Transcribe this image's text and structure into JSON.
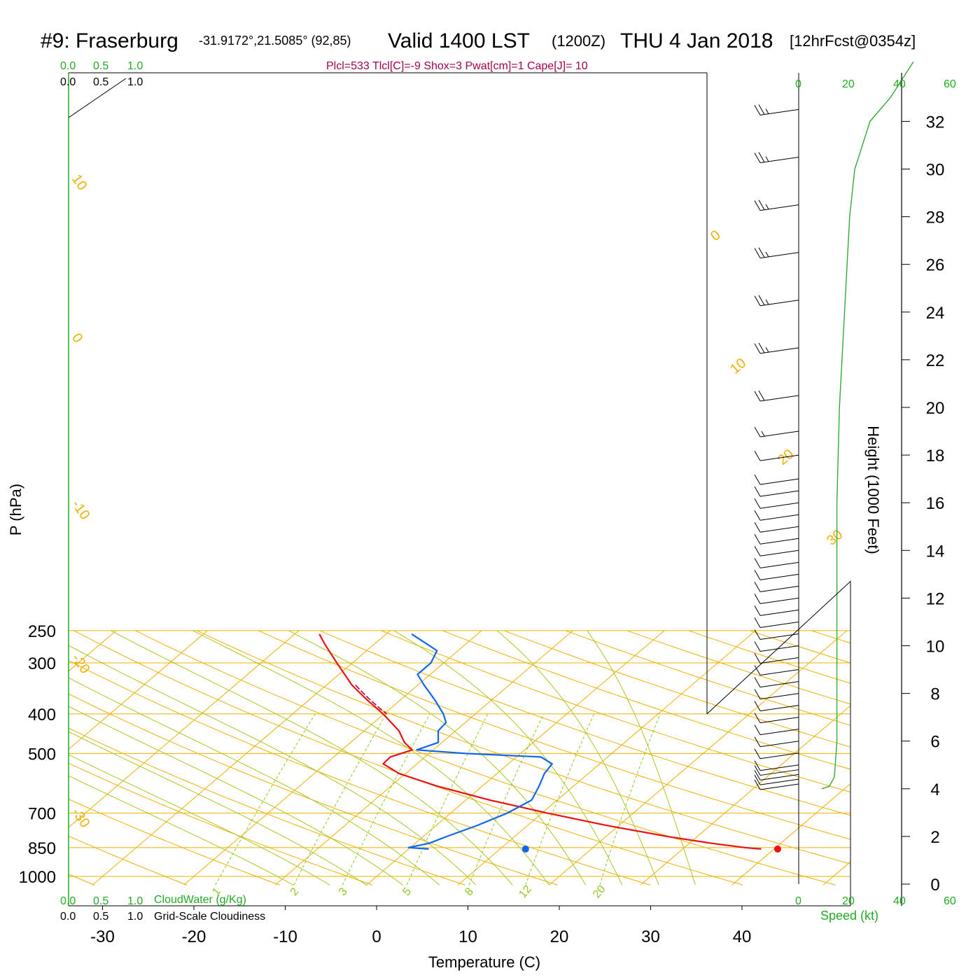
{
  "header": {
    "station": "#9: Fraserburg",
    "coords": "-31.9172°,21.5085° (92,85)",
    "valid": "Valid 1400 LST",
    "utc": "(1200Z)",
    "date": "THU 4 Jan 2018",
    "forecast": "[12hrFcst@0354z]",
    "indices": "Plcl=533 Tlcl[C]=-9 Shox=3 Pwat[cm]=1 Cape[J]= 10"
  },
  "colors": {
    "temperature": "#ee1111",
    "dewpoint": "#1166ee",
    "isotherm": "#f0b000",
    "dry_adiabat": "#f0b000",
    "moist_adiabat": "#a8c820",
    "mixing_ratio": "#90c820",
    "cloud_water": "#22aa22",
    "speed_profile": "#33aa33",
    "parcel": "#a3004f"
  },
  "cloud_scale": {
    "green_labels": [
      "0.0",
      "0.5",
      "1.0"
    ],
    "black_labels": [
      "0.0",
      "0.5",
      "1.0"
    ],
    "cloud_water_label": "CloudWater (g/Kg)",
    "cloudiness_label": "Grid-Scale Cloudiness"
  },
  "speed_scale": {
    "labels": [
      "0",
      "20",
      "40",
      "60"
    ],
    "axis_label": "Speed (kt)"
  },
  "chart_data": {
    "type": "line",
    "title": "#9: Fraserburg",
    "xlabel": "Temperature (C)",
    "ylabel": "P (hPa)",
    "y2label": "Height (1000 Feet)",
    "x_ticks": [
      -30,
      -20,
      -10,
      0,
      10,
      20,
      30,
      40
    ],
    "y_ticks_hpa": [
      250,
      300,
      400,
      500,
      700,
      850,
      1000
    ],
    "height_ticks_kft": [
      0,
      2,
      4,
      6,
      8,
      10,
      12,
      14,
      16,
      18,
      20,
      22,
      24,
      26,
      28,
      30,
      32
    ],
    "xlim": [
      -35,
      36
    ],
    "ylim_hpa": [
      1050,
      250
    ],
    "series": [
      {
        "name": "Temperature",
        "pressure": [
          857,
          850,
          830,
          800,
          750,
          700,
          650,
          600,
          560,
          530,
          510,
          490,
          470,
          440,
          400,
          370,
          340,
          300,
          270,
          255
        ],
        "values": [
          38.6,
          36.6,
          32.5,
          27.0,
          18.6,
          10.6,
          2.6,
          -5.1,
          -10.7,
          -13.7,
          -13.8,
          -12.3,
          -14.1,
          -16.2,
          -20.1,
          -23.6,
          -27.2,
          -31.7,
          -35.4,
          -37.3
        ]
      },
      {
        "name": "Dewpoint",
        "pressure": [
          857,
          850,
          830,
          800,
          750,
          700,
          650,
          600,
          560,
          530,
          510,
          500,
          490,
          470,
          440,
          420,
          400,
          370,
          340,
          320,
          300,
          280,
          270,
          255
        ],
        "values": [
          2.2,
          -0.2,
          1.5,
          2.5,
          4.5,
          6.2,
          7.2,
          6.2,
          5.2,
          4.8,
          2.7,
          -6.0,
          -11.8,
          -10.4,
          -11.9,
          -12.1,
          -13.5,
          -16.2,
          -19.3,
          -21.4,
          -21.4,
          -22.3,
          -24.2,
          -27.2
        ]
      }
    ],
    "surface_points": [
      {
        "name": "Surface Temperature",
        "pressure": 857,
        "value": 40.4
      },
      {
        "name": "Surface Dewpoint",
        "pressure": 857,
        "value": 12.8
      }
    ],
    "isotherm_labels": [
      "10",
      "0",
      "-10",
      "-20",
      "-30",
      "0",
      "10",
      "20",
      "30"
    ],
    "mixing_ratio_labels": [
      "1",
      "2",
      "3",
      "5",
      "8",
      "12",
      "20"
    ],
    "wind_barbs_kt": {
      "heights_kft": [
        4.2,
        4.4,
        4.6,
        4.8,
        5.0,
        5.5,
        6.0,
        6.5,
        7.0,
        7.5,
        8.0,
        8.5,
        9.0,
        9.5,
        10.0,
        10.5,
        11.0,
        11.5,
        12.0,
        12.5,
        13.0,
        13.5,
        14.0,
        14.5,
        15.0,
        15.5,
        16.0,
        16.5,
        17.0,
        18.0,
        19.0,
        20.5,
        22.5,
        24.5,
        26.5,
        28.5,
        30.5,
        32.5,
        34.5
      ],
      "speeds": [
        10,
        10,
        10,
        10,
        10,
        10,
        10,
        10,
        10,
        10,
        10,
        10,
        10,
        10,
        10,
        10,
        10,
        10,
        10,
        10,
        10,
        10,
        10,
        10,
        10,
        10,
        10,
        10,
        10,
        10,
        15,
        20,
        25,
        25,
        25,
        25,
        25,
        25,
        30
      ]
    },
    "speed_profile": {
      "heights_kft": [
        4.0,
        4.1,
        4.5,
        6.0,
        8.0,
        12.0,
        16.0,
        20.0,
        24.0,
        28.0,
        30.0,
        32.0,
        33.0,
        34.5
      ],
      "speeds_kt": [
        9,
        12,
        14,
        15,
        15,
        15,
        15,
        16,
        18,
        20,
        22,
        28,
        36,
        45
      ]
    },
    "grid": true,
    "legend": "none"
  }
}
